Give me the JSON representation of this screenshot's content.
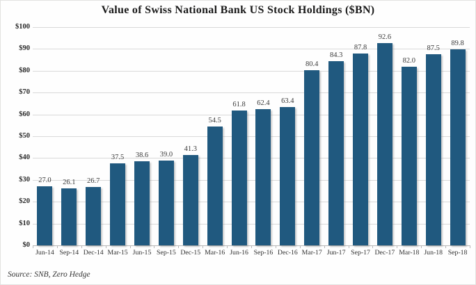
{
  "title": "Value of Swiss National Bank US Stock Holdings ($BN)",
  "source": "Source: SNB, Zero Hedge",
  "colors": {
    "bar": "#20597f",
    "grid": "#d9d9d9",
    "axis": "#b7b7b7",
    "text": "#262626"
  },
  "chart_data": {
    "type": "bar",
    "title": "Value of Swiss National Bank US Stock Holdings ($BN)",
    "xlabel": "",
    "ylabel": "",
    "ylim": [
      0,
      100
    ],
    "ytick_step": 10,
    "ytick_prefix": "$",
    "grid": true,
    "legend": false,
    "categories": [
      "Jun-14",
      "Sep-14",
      "Dec-14",
      "Mar-15",
      "Jun-15",
      "Sep-15",
      "Dec-15",
      "Mar-16",
      "Jun-16",
      "Sep-16",
      "Dec-16",
      "Mar-17",
      "Jun-17",
      "Sep-17",
      "Dec-17",
      "Mar-18",
      "Jun-18",
      "Sep-18"
    ],
    "values": [
      27.0,
      26.1,
      26.7,
      37.5,
      38.6,
      39.0,
      41.3,
      54.5,
      61.8,
      62.4,
      63.4,
      80.4,
      84.3,
      87.8,
      92.6,
      82.0,
      87.5,
      89.8
    ]
  }
}
